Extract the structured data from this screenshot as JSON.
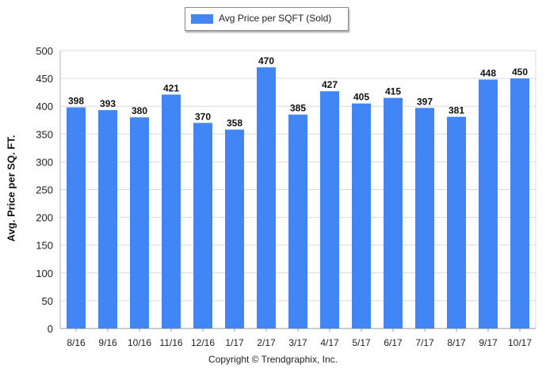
{
  "chart_data": {
    "type": "bar",
    "title": "",
    "xlabel": "",
    "ylabel": "Avg. Price per SQ. FT.",
    "categories": [
      "8/16",
      "9/16",
      "10/16",
      "11/16",
      "12/16",
      "1/17",
      "2/17",
      "3/17",
      "4/17",
      "5/17",
      "6/17",
      "7/17",
      "8/17",
      "9/17",
      "10/17"
    ],
    "series": [
      {
        "name": "Avg Price per SQFT (Sold)",
        "values": [
          398,
          393,
          380,
          421,
          370,
          358,
          470,
          385,
          427,
          405,
          415,
          397,
          381,
          448,
          450
        ],
        "color": "#4285f4"
      }
    ],
    "ylim": [
      0,
      500
    ],
    "yticks": [
      0,
      50,
      100,
      150,
      200,
      250,
      300,
      350,
      400,
      450,
      500
    ],
    "grid": true,
    "legend_position": "top-center",
    "data_labels": true
  },
  "footer": {
    "copyright": "Copyright © Trendgraphix, Inc."
  }
}
